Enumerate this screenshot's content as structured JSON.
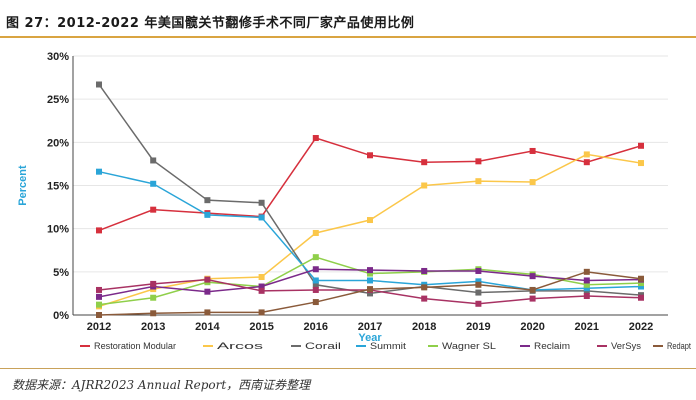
{
  "figure": {
    "title": "图 27：2012-2022 年美国髋关节翻修手术不同厂家产品使用比例",
    "source": "数据来源：AJRR2023 Annual Report，西南证券整理"
  },
  "chart_data": {
    "type": "line",
    "xlabel": "Year",
    "ylabel": "Percent",
    "ylim": [
      0,
      30
    ],
    "yticks": [
      "0%",
      "5%",
      "10%",
      "15%",
      "20%",
      "25%",
      "30%"
    ],
    "categories": [
      "2012",
      "2013",
      "2014",
      "2015",
      "2016",
      "2017",
      "2018",
      "2019",
      "2020",
      "2021",
      "2022"
    ],
    "series": [
      {
        "name": "Restoration Modular",
        "color": "#d6303d",
        "values": [
          9.8,
          12.2,
          11.8,
          11.4,
          20.5,
          18.5,
          17.7,
          17.8,
          19.0,
          17.7,
          19.6
        ]
      },
      {
        "name": "Arcos",
        "color": "#fbc74a",
        "values": [
          1.0,
          3.0,
          4.2,
          4.4,
          9.5,
          11.0,
          15.0,
          15.5,
          15.4,
          18.6,
          17.6
        ]
      },
      {
        "name": "Corail",
        "color": "#6b6b6b",
        "values": [
          26.7,
          17.9,
          13.3,
          13.0,
          3.5,
          2.5,
          3.3,
          2.6,
          2.8,
          2.8,
          2.3
        ]
      },
      {
        "name": "Summit",
        "color": "#2aa5d8",
        "values": [
          16.6,
          15.2,
          11.6,
          11.3,
          4.0,
          4.0,
          3.5,
          3.9,
          2.9,
          3.1,
          3.3
        ]
      },
      {
        "name": "Wagner SL",
        "color": "#8fcf4a",
        "values": [
          1.2,
          2.0,
          3.8,
          3.3,
          6.7,
          4.8,
          5.0,
          5.3,
          4.7,
          3.5,
          3.7
        ]
      },
      {
        "name": "Reclaim",
        "color": "#7b2a8a",
        "values": [
          2.1,
          3.3,
          2.7,
          3.3,
          5.3,
          5.2,
          5.1,
          5.1,
          4.5,
          4.0,
          4.1
        ]
      },
      {
        "name": "VerSys",
        "color": "#a83263",
        "values": [
          2.9,
          3.6,
          4.1,
          2.8,
          2.9,
          2.9,
          1.9,
          1.3,
          1.9,
          2.2,
          2.0
        ]
      },
      {
        "name": "Redapt",
        "color": "#8a5a3a",
        "values": [
          0.0,
          0.2,
          0.3,
          0.3,
          1.5,
          3.0,
          3.2,
          3.5,
          2.9,
          5.0,
          4.2
        ]
      }
    ]
  }
}
